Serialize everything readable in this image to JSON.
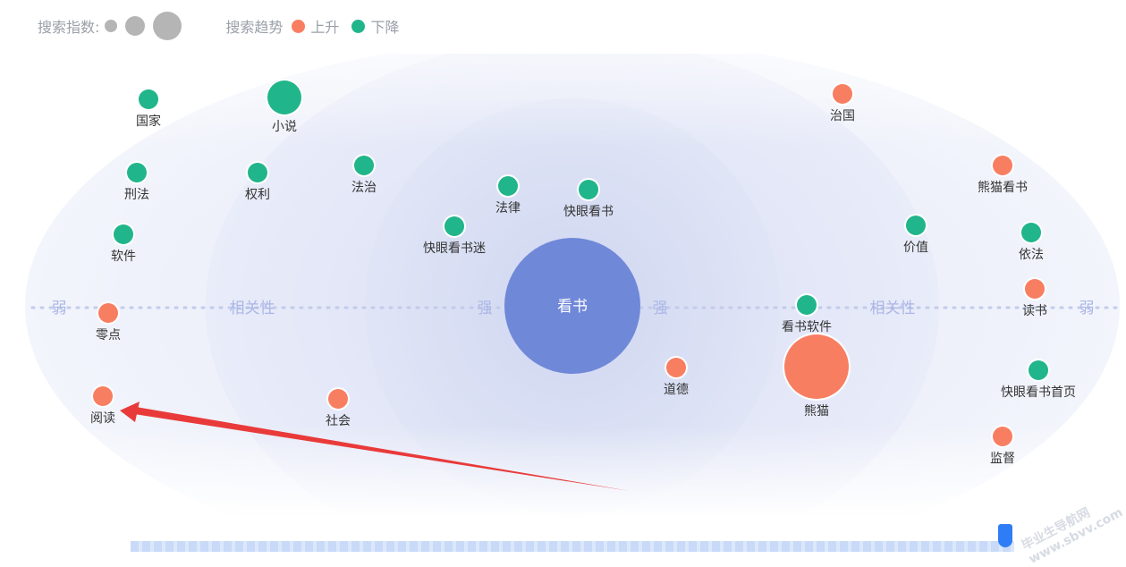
{
  "legend": {
    "size_label": "搜索指数:",
    "trend_label": "搜索趋势",
    "up_label": "上升",
    "down_label": "下降",
    "colors": {
      "up": "#f87e62",
      "down": "#21b58b",
      "center": "#7088d8"
    }
  },
  "axis_labels": {
    "weak_left": "弱",
    "relevance_left": "相关性",
    "strong_left": "强",
    "strong_right": "强",
    "relevance_right": "相关性",
    "weak_right": "弱"
  },
  "watermark": "毕业生导航网 www.sbvv.com",
  "chart_data": {
    "type": "scatter",
    "center": {
      "name": "看书"
    },
    "points": [
      {
        "name": "国家",
        "trend": "down",
        "size": 1
      },
      {
        "name": "小说",
        "trend": "down",
        "size": 3
      },
      {
        "name": "刑法",
        "trend": "down",
        "size": 1
      },
      {
        "name": "权利",
        "trend": "down",
        "size": 1
      },
      {
        "name": "法治",
        "trend": "down",
        "size": 1
      },
      {
        "name": "法律",
        "trend": "down",
        "size": 1
      },
      {
        "name": "快眼看书",
        "trend": "down",
        "size": 1
      },
      {
        "name": "快眼看书迷",
        "trend": "down",
        "size": 1
      },
      {
        "name": "软件",
        "trend": "down",
        "size": 1
      },
      {
        "name": "零点",
        "trend": "up",
        "size": 1
      },
      {
        "name": "阅读",
        "trend": "up",
        "size": 1
      },
      {
        "name": "社会",
        "trend": "up",
        "size": 1
      },
      {
        "name": "道德",
        "trend": "up",
        "size": 1
      },
      {
        "name": "看书软件",
        "trend": "down",
        "size": 1
      },
      {
        "name": "熊猫",
        "trend": "up",
        "size": 6
      },
      {
        "name": "治国",
        "trend": "up",
        "size": 1
      },
      {
        "name": "熊猫看书",
        "trend": "up",
        "size": 1
      },
      {
        "name": "价值",
        "trend": "down",
        "size": 1
      },
      {
        "name": "依法",
        "trend": "down",
        "size": 1
      },
      {
        "name": "读书",
        "trend": "up",
        "size": 1
      },
      {
        "name": "快眼看书首页",
        "trend": "down",
        "size": 1
      },
      {
        "name": "监督",
        "trend": "up",
        "size": 1
      }
    ]
  }
}
